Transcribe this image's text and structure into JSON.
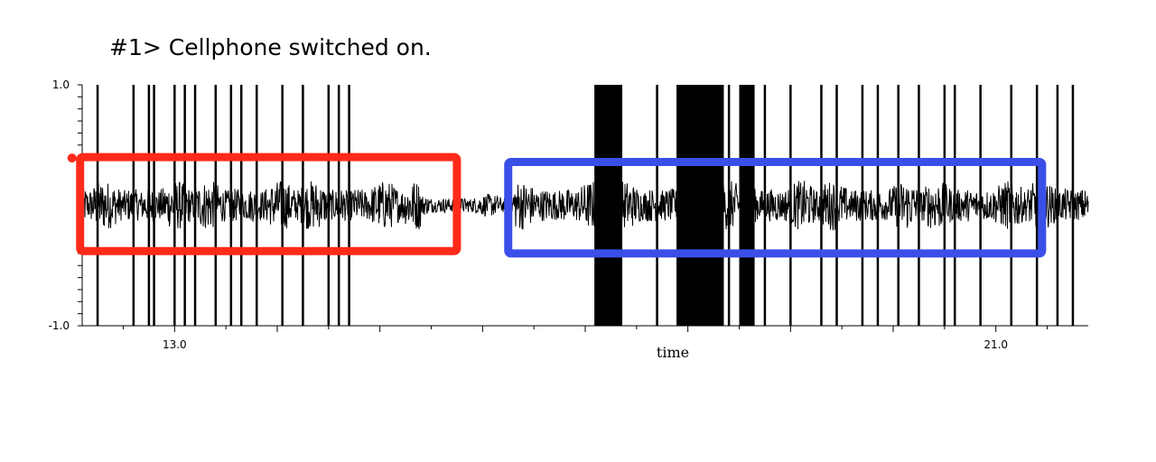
{
  "title": "#1> Cellphone switched on.",
  "chart_data": {
    "type": "line",
    "xlabel": "time",
    "ylabel": "",
    "xlim": [
      12.1,
      21.9
    ],
    "ylim": [
      -1.0,
      1.0
    ],
    "y_tick_labels": [
      "1.0",
      "-1.0"
    ],
    "y_ticks": [
      1.0,
      -1.0
    ],
    "x_tick_labels": [
      "13.0",
      "21.0"
    ],
    "x_ticks": [
      13.0,
      21.0
    ],
    "grid": false,
    "baseline_noise_amplitude": 0.1,
    "burst_noise_amplitude": 0.22,
    "noise_bursts": [
      [
        12.1,
        15.4
      ],
      [
        16.3,
        21.9
      ]
    ],
    "dense_blocks": [
      [
        17.1,
        17.35
      ],
      [
        17.9,
        18.35
      ],
      [
        18.5,
        18.65
      ]
    ],
    "spikes": [
      12.25,
      12.6,
      12.75,
      12.8,
      13.0,
      13.1,
      13.2,
      13.4,
      13.55,
      13.65,
      13.8,
      14.05,
      14.25,
      14.5,
      14.6,
      14.7,
      17.1,
      17.35,
      17.7,
      17.9,
      18.05,
      18.2,
      18.4,
      18.6,
      18.75,
      19.0,
      19.3,
      19.45,
      19.7,
      19.85,
      20.05,
      20.25,
      20.5,
      20.6,
      20.85,
      21.15,
      21.4,
      21.6,
      21.75
    ],
    "annotations": [
      {
        "shape": "rect",
        "color": "#ff2a1a",
        "x_range": [
          12.08,
          15.75
        ],
        "y_range": [
          -0.38,
          0.4
        ]
      },
      {
        "shape": "rect",
        "color": "#3a4fe8",
        "x_range": [
          16.25,
          21.45
        ],
        "y_range": [
          -0.4,
          0.36
        ]
      }
    ]
  }
}
